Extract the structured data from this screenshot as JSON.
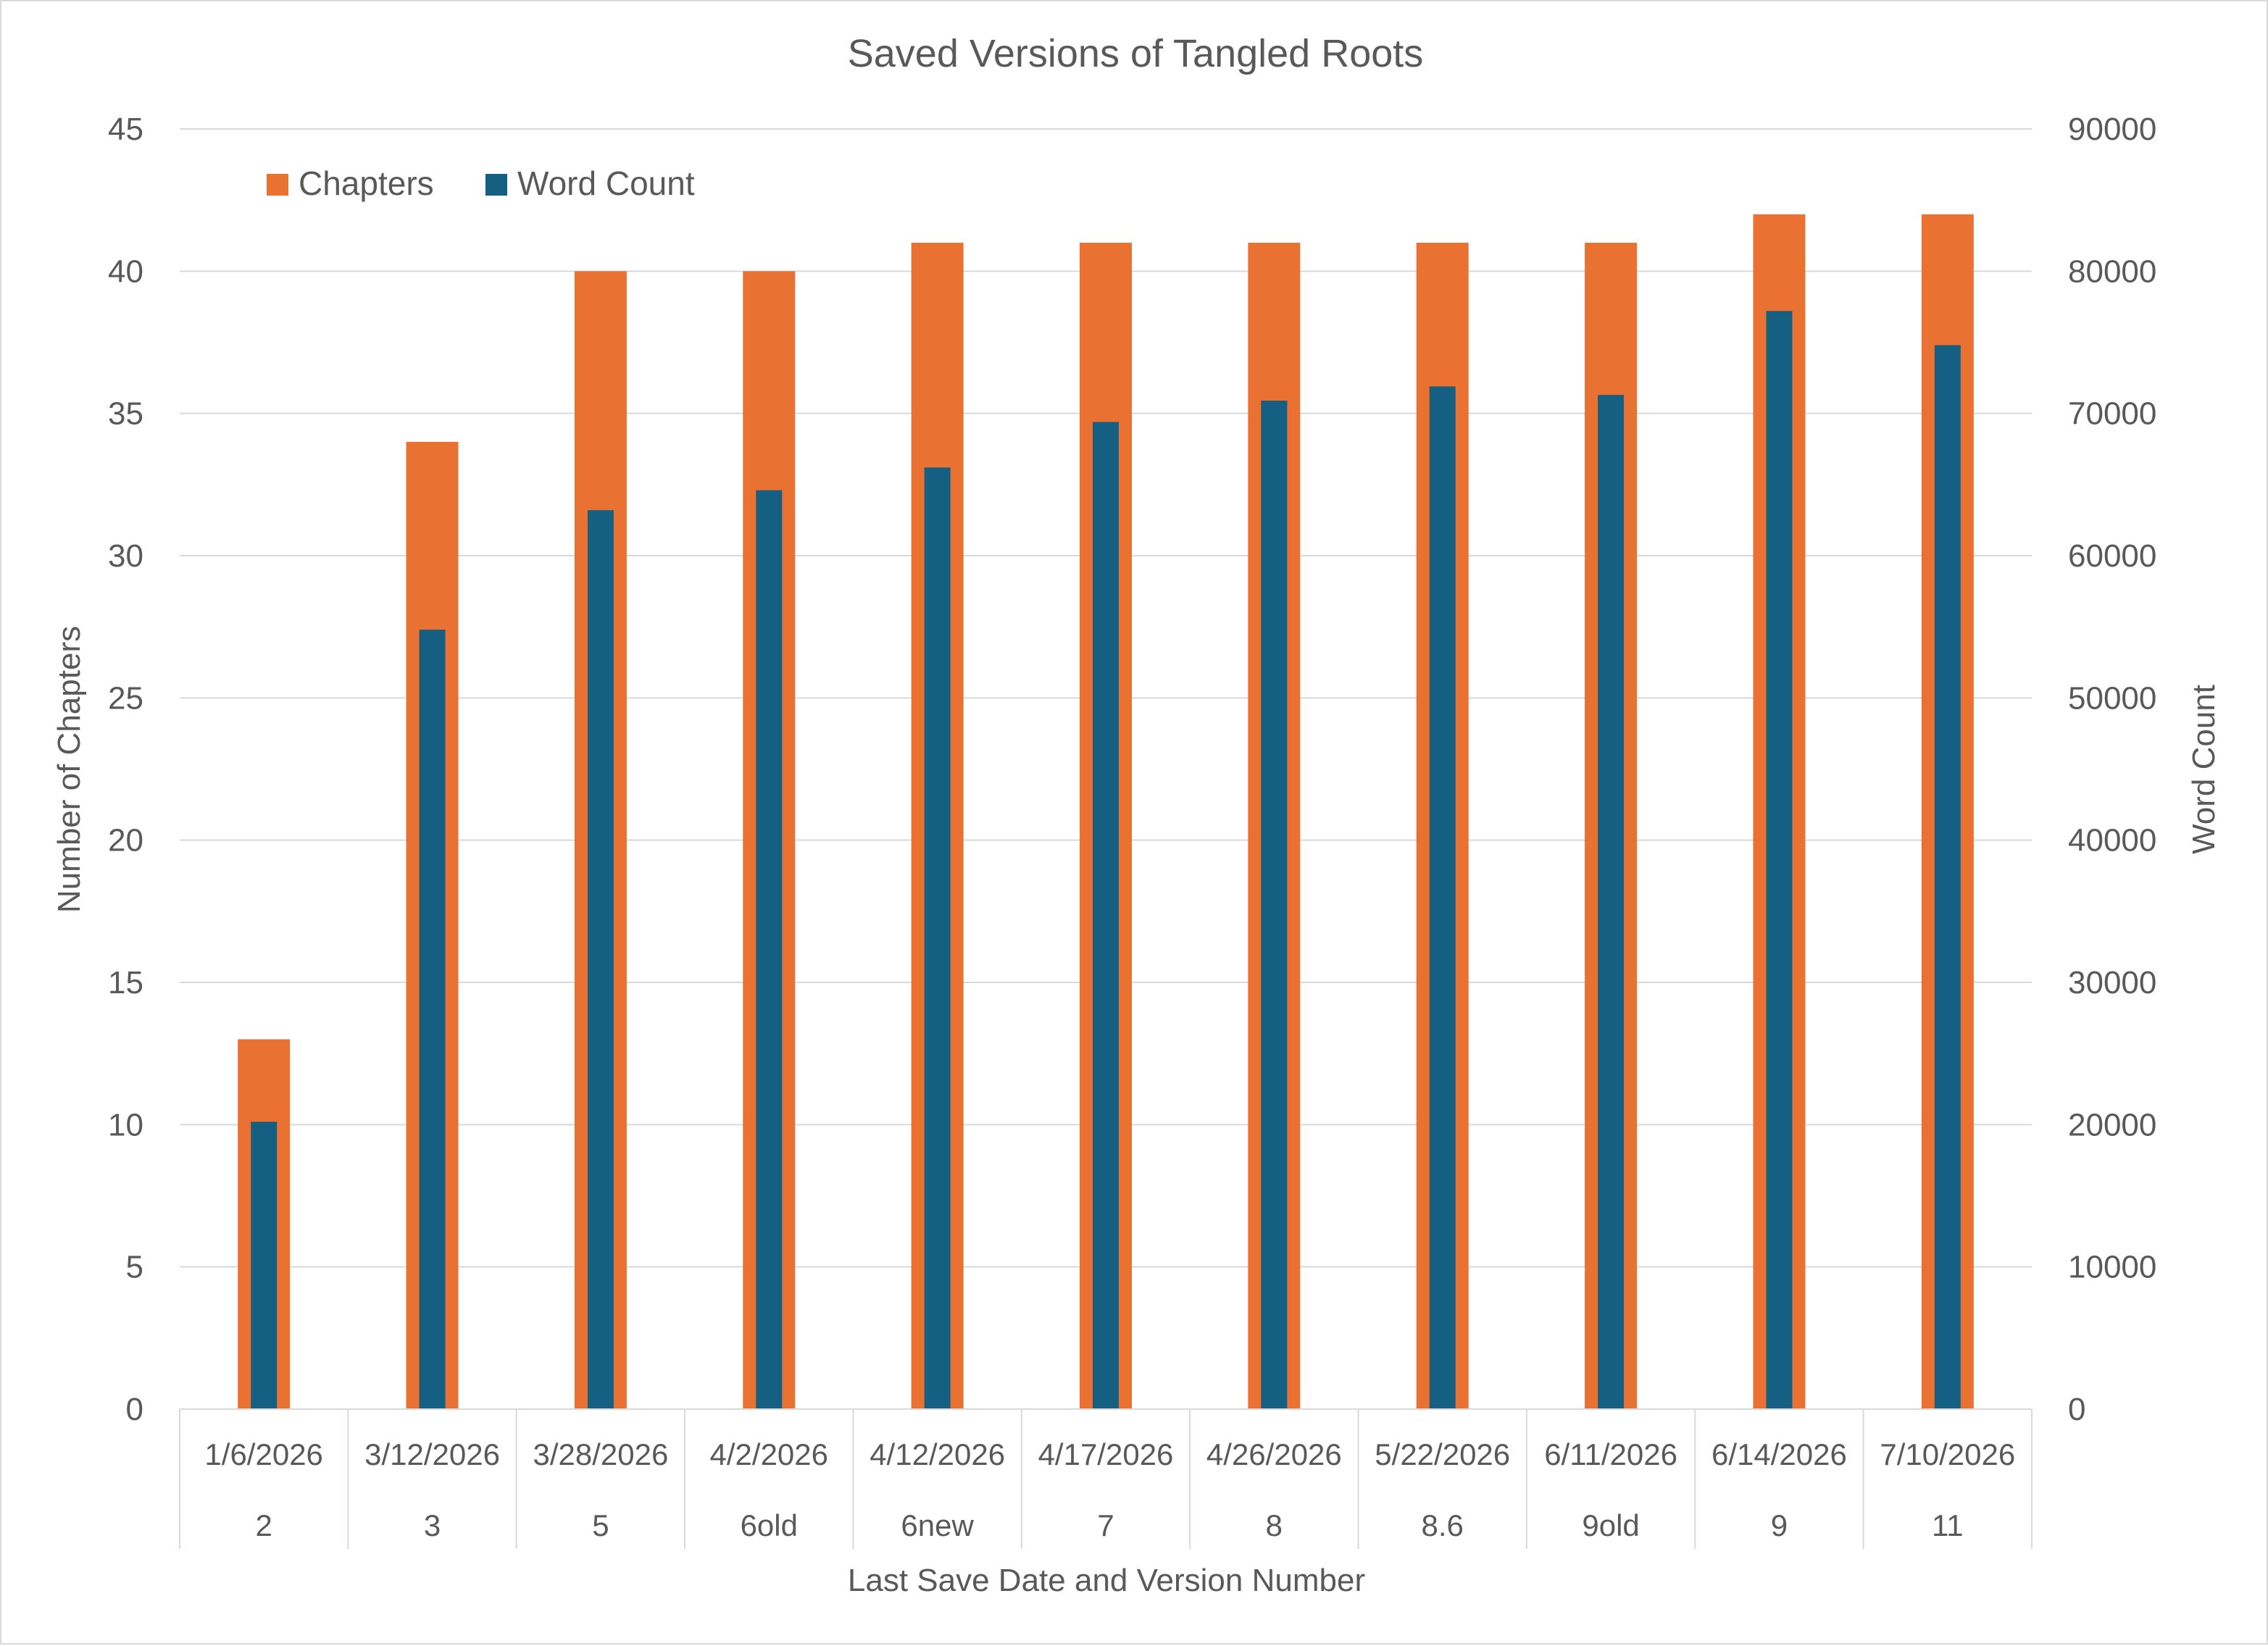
{
  "chart_data": {
    "type": "bar",
    "title": "Saved Versions of Tangled Roots",
    "xlabel": "Last Save Date and Version Number",
    "ylabel": "Number of Chapters",
    "y2label": "Word Count",
    "ylim": [
      0,
      45
    ],
    "y2lim": [
      0,
      90000
    ],
    "yticks": [
      "0",
      "5",
      "10",
      "15",
      "20",
      "25",
      "30",
      "35",
      "40",
      "45"
    ],
    "y2ticks": [
      "0",
      "10000",
      "20000",
      "30000",
      "40000",
      "50000",
      "60000",
      "70000",
      "80000",
      "90000"
    ],
    "categories": [
      {
        "date": "1/6/2026",
        "version": "2"
      },
      {
        "date": "3/12/2026",
        "version": "3"
      },
      {
        "date": "3/28/2026",
        "version": "5"
      },
      {
        "date": "4/2/2026",
        "version": "6old"
      },
      {
        "date": "4/12/2026",
        "version": "6new"
      },
      {
        "date": "4/17/2026",
        "version": "7"
      },
      {
        "date": "4/26/2026",
        "version": "8"
      },
      {
        "date": "5/22/2026",
        "version": "8.6"
      },
      {
        "date": "6/11/2026",
        "version": "9old"
      },
      {
        "date": "6/14/2026",
        "version": "9"
      },
      {
        "date": "7/10/2026",
        "version": "11"
      }
    ],
    "series": [
      {
        "name": "Chapters",
        "axis": "left",
        "color": "#E97132",
        "values": [
          13,
          34,
          40,
          40,
          41,
          41,
          41,
          41,
          41,
          42,
          42
        ]
      },
      {
        "name": "Word Count",
        "axis": "right",
        "color": "#156082",
        "values": [
          20200,
          54800,
          63200,
          64600,
          66200,
          69400,
          70900,
          71900,
          71300,
          77200,
          74800
        ]
      }
    ],
    "grid": true,
    "legend": "top-left"
  }
}
